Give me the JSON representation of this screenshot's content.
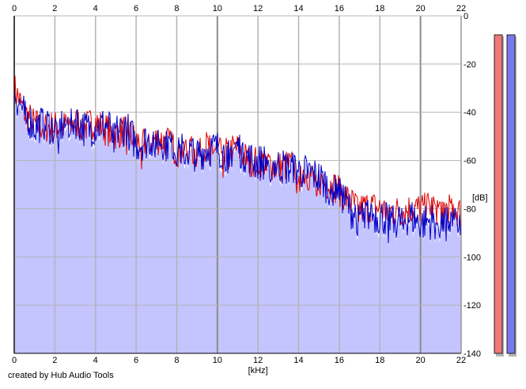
{
  "credit": "created by Hub Audio Tools",
  "colors": {
    "background": "#ffffff",
    "fill": "#c4c4ff",
    "grid": "#b4b4b4",
    "grid_major": "#8c8c8c",
    "line_blue": "#0000c8",
    "line_red": "#e00000",
    "meter_left": "#f07878",
    "meter_right": "#7878f0",
    "meter_shadow": "#b4b4b4"
  },
  "chart_data": {
    "type": "line",
    "title": "",
    "xlabel": "[kHz]",
    "ylabel": "[dB]",
    "xlim": [
      0,
      22
    ],
    "ylim": [
      -140,
      0
    ],
    "x_ticks": [
      "0",
      "2",
      "4",
      "6",
      "8",
      "10",
      "12",
      "14",
      "16",
      "18",
      "20",
      "22"
    ],
    "y_ticks": [
      "0",
      "-20",
      "-40",
      "-60",
      "-80",
      "-100",
      "-120",
      "-140"
    ],
    "grid": true,
    "legend": "none",
    "series": [
      {
        "channel": "red",
        "x": [
          0,
          0.5,
          1,
          1.5,
          2,
          2.5,
          3,
          3.5,
          4,
          4.5,
          5,
          5.5,
          6,
          6.5,
          7,
          7.5,
          8,
          8.5,
          9,
          9.5,
          10,
          10.5,
          11,
          11.5,
          12,
          12.5,
          13,
          13.5,
          14,
          14.5,
          15,
          15.5,
          16,
          16.5,
          17,
          17.5,
          18,
          18.5,
          19,
          19.5,
          20,
          20.5,
          21,
          21.5,
          22
        ],
        "values": [
          -30,
          -40,
          -45,
          -46,
          -46,
          -46,
          -44,
          -46,
          -44,
          -47,
          -49,
          -47,
          -52,
          -53,
          -51,
          -52,
          -56,
          -55,
          -57,
          -54,
          -56,
          -56,
          -55,
          -60,
          -60,
          -61,
          -63,
          -62,
          -63,
          -66,
          -68,
          -70,
          -72,
          -77,
          -80,
          -79,
          -80,
          -81,
          -81,
          -80,
          -80,
          -79,
          -80,
          -79,
          -82
        ]
      },
      {
        "channel": "blue",
        "x": [
          0,
          0.5,
          1,
          1.5,
          2,
          2.5,
          3,
          3.5,
          4,
          4.5,
          5,
          5.5,
          6,
          6.5,
          7,
          7.5,
          8,
          8.5,
          9,
          9.5,
          10,
          10.5,
          11,
          11.5,
          12,
          12.5,
          13,
          13.5,
          14,
          14.5,
          15,
          15.5,
          16,
          16.5,
          17,
          17.5,
          18,
          18.5,
          19,
          19.5,
          20,
          20.5,
          21,
          21.5,
          22
        ],
        "values": [
          -32,
          -40,
          -46,
          -44,
          -47,
          -45,
          -43,
          -47,
          -46,
          -45,
          -48,
          -46,
          -53,
          -52,
          -50,
          -53,
          -55,
          -56,
          -57,
          -55,
          -55,
          -57,
          -54,
          -59,
          -61,
          -60,
          -62,
          -63,
          -64,
          -65,
          -67,
          -71,
          -72,
          -80,
          -83,
          -82,
          -83,
          -84,
          -85,
          -83,
          -86,
          -85,
          -86,
          -85,
          -88
        ]
      }
    ]
  }
}
